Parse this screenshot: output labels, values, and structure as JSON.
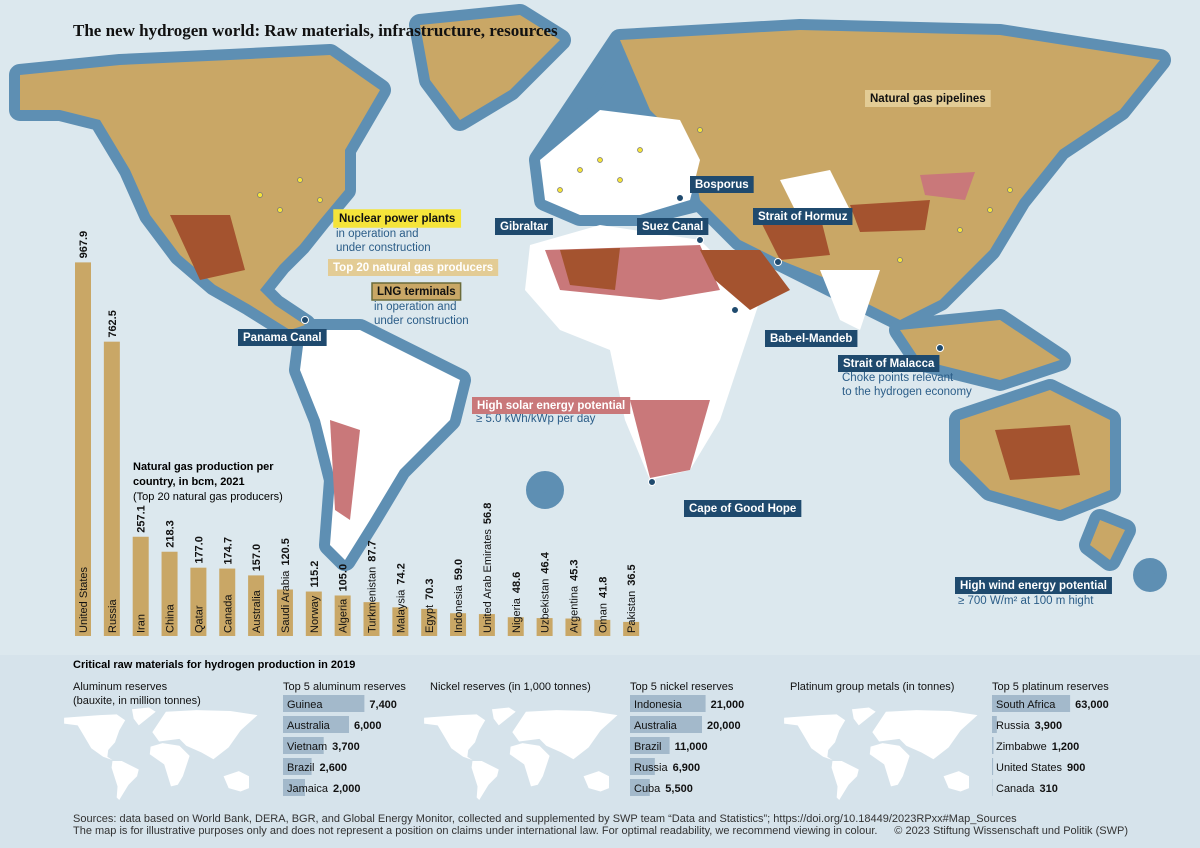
{
  "title": "The new hydrogen world: Raw materials, infrastructure, resources",
  "legend": {
    "pipelines": "Natural gas pipelines",
    "nuclear": {
      "label": "Nuclear power plants",
      "detail": [
        "in operation and",
        "under construction"
      ]
    },
    "gas_producers": "Top 20 natural gas producers",
    "lng": {
      "label": "LNG terminals",
      "detail": [
        "in operation and",
        "under construction"
      ]
    },
    "solar": {
      "label": "High solar energy potential",
      "detail": "≥ 5.0 kWh/kWp per day"
    },
    "wind": {
      "label": "High wind energy potential",
      "detail": "≥ 700 W/m² at 100 m hight"
    },
    "choke": {
      "detail": [
        "Choke points relevant",
        "to the hydrogen economy"
      ]
    }
  },
  "choke_points": [
    "Panama Canal",
    "Gibraltar",
    "Bosporus",
    "Suez Canal",
    "Strait of Hormuz",
    "Bab-el-Mandeb",
    "Strait of Malacca",
    "Cape of Good Hope"
  ],
  "chart_data": {
    "type": "bar",
    "title": [
      "Natural gas production per",
      "country, in bcm, 2021"
    ],
    "subtitle": "(Top 20 natural gas producers)",
    "categories": [
      "United States",
      "Russia",
      "Iran",
      "China",
      "Qatar",
      "Canada",
      "Australia",
      "Saudi Arabia",
      "Norway",
      "Algeria",
      "Turkmenistan",
      "Malaysia",
      "Egypt",
      "Indonesia",
      "United Arab Emirates",
      "Nigeria",
      "Uzbekistan",
      "Argentina",
      "Oman",
      "Pakistan"
    ],
    "values": [
      967.9,
      762.5,
      257.1,
      218.3,
      177.0,
      174.7,
      157.0,
      120.5,
      115.2,
      105.0,
      87.7,
      74.2,
      70.3,
      59.0,
      56.8,
      48.6,
      46.4,
      45.3,
      41.8,
      36.5
    ],
    "value_labels": [
      "967.9",
      "762.5",
      "257.1",
      "218.3",
      "177.0",
      "174.7",
      "157.0",
      "120.5",
      "115.2",
      "105.0",
      "87.7",
      "74.2",
      "70.3",
      "59.0",
      "56.8",
      "48.6",
      "46.4",
      "45.3",
      "41.8",
      "36.5"
    ],
    "color": "#c9a766"
  },
  "raw_materials": {
    "title": "Critical raw materials for hydrogen production in 2019",
    "color": "#a3b9cb",
    "groups": [
      {
        "label": [
          "Aluminum reserves",
          "(bauxite, in million tonnes)"
        ],
        "top_title": "Top 5 aluminum reserves",
        "categories": [
          "Guinea",
          "Australia",
          "Vietnam",
          "Brazil",
          "Jamaica"
        ],
        "values": [
          7400,
          6000,
          3700,
          2600,
          2000
        ],
        "value_labels": [
          "7,400",
          "6,000",
          "3,700",
          "2,600",
          "2,000"
        ]
      },
      {
        "label": [
          "Nickel reserves (in 1,000 tonnes)"
        ],
        "top_title": "Top 5 nickel reserves",
        "categories": [
          "Indonesia",
          "Australia",
          "Brazil",
          "Russia",
          "Cuba"
        ],
        "values": [
          21000,
          20000,
          11000,
          6900,
          5500
        ],
        "value_labels": [
          "21,000",
          "20,000",
          "11,000",
          "6,900",
          "5,500"
        ]
      },
      {
        "label": [
          "Platinum group metals (in tonnes)"
        ],
        "top_title": "Top 5 platinum reserves",
        "categories": [
          "South Africa",
          "Russia",
          "Zimbabwe",
          "United States",
          "Canada"
        ],
        "values": [
          63000,
          3900,
          1200,
          900,
          310
        ],
        "value_labels": [
          "63,000",
          "3,900",
          "1,200",
          "900",
          "310"
        ]
      }
    ]
  },
  "footer": {
    "sources": "Sources: data based on World Bank, DERA, BGR, and Global Energy Monitor, collected and supplemented by SWP team “Data and Statistics”; https://doi.org/10.18449/2023RPxx#Map_Sources",
    "disclaimer": "The map is for illustrative purposes only and does not represent a position on claims under international law. For optimal readability, we recommend viewing in colour.",
    "copyright": "© 2023 Stiftung Wissenschaft und Politik (SWP)"
  }
}
